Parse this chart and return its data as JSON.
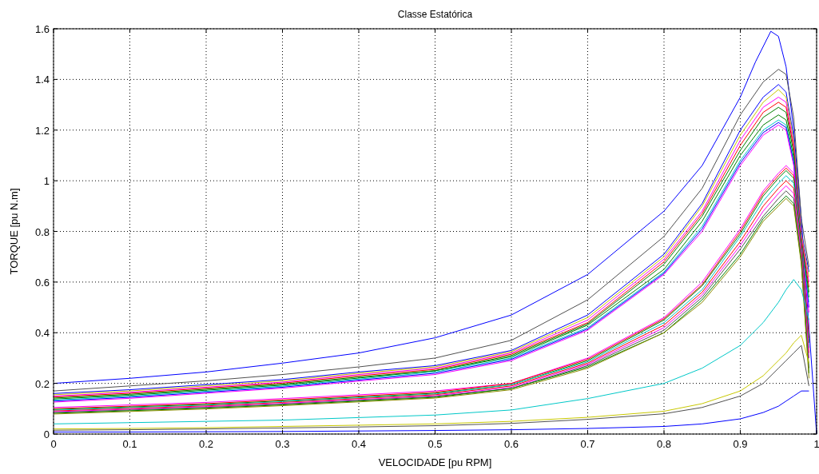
{
  "chart_data": {
    "type": "line",
    "title": "Classe Estatórica",
    "xlabel": "VELOCIDADE [pu RPM]",
    "ylabel": "TORQUE [pu N.m]",
    "x": [
      0,
      0.1,
      0.2,
      0.3,
      0.4,
      0.5,
      0.6,
      0.7,
      0.8,
      0.85,
      0.9,
      0.93,
      0.95,
      0.96,
      0.97,
      0.98,
      0.99
    ],
    "xlim": [
      0,
      1
    ],
    "xticks": [
      0,
      0.1,
      0.2,
      0.3,
      0.4,
      0.5,
      0.6,
      0.7,
      0.8,
      0.9,
      1
    ],
    "ylim": [
      0,
      1.6
    ],
    "yticks": [
      0,
      0.2,
      0.4,
      0.6,
      0.8,
      1,
      1.2,
      1.4,
      1.6
    ],
    "grid": true,
    "marker": "none",
    "line_style": "solid",
    "series": [
      {
        "color": "#0000ff",
        "x": [
          0,
          0.1,
          0.2,
          0.3,
          0.4,
          0.5,
          0.6,
          0.7,
          0.8,
          0.85,
          0.9,
          0.92,
          0.94,
          0.95,
          0.96,
          0.97,
          0.98,
          0.99,
          1
        ],
        "values": [
          0.2,
          0.22,
          0.245,
          0.28,
          0.32,
          0.38,
          0.47,
          0.63,
          0.88,
          1.06,
          1.33,
          1.47,
          1.59,
          1.57,
          1.45,
          1.2,
          0.85,
          0.42,
          0
        ]
      },
      {
        "color": "#505050",
        "values": [
          0.17,
          0.19,
          0.21,
          0.235,
          0.265,
          0.3,
          0.37,
          0.53,
          0.78,
          0.97,
          1.26,
          1.39,
          1.44,
          1.42,
          1.25,
          0.85,
          0.66
        ]
      },
      {
        "color": "#0000ff",
        "values": [
          0.16,
          0.175,
          0.195,
          0.215,
          0.245,
          0.27,
          0.33,
          0.47,
          0.71,
          0.91,
          1.2,
          1.33,
          1.38,
          1.35,
          1.17,
          0.8,
          0.64
        ]
      },
      {
        "color": "#c8c800",
        "values": [
          0.155,
          0.17,
          0.19,
          0.21,
          0.24,
          0.265,
          0.325,
          0.46,
          0.7,
          0.9,
          1.18,
          1.31,
          1.36,
          1.33,
          1.16,
          0.79,
          0.62
        ]
      },
      {
        "color": "#ff00ff",
        "values": [
          0.15,
          0.165,
          0.185,
          0.205,
          0.235,
          0.26,
          0.32,
          0.45,
          0.69,
          0.88,
          1.16,
          1.29,
          1.33,
          1.31,
          1.14,
          0.78,
          0.6
        ]
      },
      {
        "color": "#ff0000",
        "values": [
          0.146,
          0.161,
          0.181,
          0.201,
          0.23,
          0.255,
          0.315,
          0.44,
          0.68,
          0.87,
          1.14,
          1.27,
          1.31,
          1.29,
          1.13,
          0.77,
          0.58
        ]
      },
      {
        "color": "#008000",
        "values": [
          0.142,
          0.157,
          0.177,
          0.197,
          0.225,
          0.25,
          0.31,
          0.435,
          0.67,
          0.86,
          1.12,
          1.25,
          1.29,
          1.27,
          1.11,
          0.76,
          0.56
        ]
      },
      {
        "color": "#008000",
        "values": [
          0.138,
          0.153,
          0.173,
          0.193,
          0.221,
          0.25,
          0.305,
          0.43,
          0.65,
          0.84,
          1.1,
          1.22,
          1.26,
          1.24,
          1.09,
          0.75,
          0.54
        ]
      },
      {
        "color": "#00c8c8",
        "values": [
          0.134,
          0.149,
          0.169,
          0.189,
          0.217,
          0.245,
          0.3,
          0.42,
          0.64,
          0.82,
          1.08,
          1.2,
          1.24,
          1.22,
          1.08,
          0.75,
          0.52
        ]
      },
      {
        "color": "#0000ff",
        "values": [
          0.13,
          0.145,
          0.165,
          0.185,
          0.213,
          0.24,
          0.295,
          0.415,
          0.635,
          0.81,
          1.07,
          1.19,
          1.23,
          1.21,
          1.07,
          0.74,
          0.5
        ]
      },
      {
        "color": "#ff00ff",
        "values": [
          0.126,
          0.141,
          0.161,
          0.181,
          0.209,
          0.235,
          0.29,
          0.41,
          0.63,
          0.8,
          1.06,
          1.18,
          1.22,
          1.2,
          1.06,
          0.74,
          0.48
        ]
      },
      {
        "color": "#ff00ff",
        "values": [
          0.105,
          0.115,
          0.125,
          0.14,
          0.155,
          0.17,
          0.2,
          0.3,
          0.46,
          0.6,
          0.81,
          0.96,
          1.03,
          1.06,
          1.03,
          0.76,
          0.4
        ]
      },
      {
        "color": "#ff0000",
        "values": [
          0.1,
          0.11,
          0.12,
          0.135,
          0.15,
          0.165,
          0.2,
          0.295,
          0.455,
          0.59,
          0.8,
          0.95,
          1.02,
          1.05,
          1.02,
          0.75,
          0.38
        ]
      },
      {
        "color": "#008000",
        "values": [
          0.097,
          0.107,
          0.117,
          0.131,
          0.146,
          0.161,
          0.195,
          0.29,
          0.45,
          0.585,
          0.79,
          0.94,
          1.01,
          1.04,
          1.01,
          0.75,
          0.36
        ]
      },
      {
        "color": "#00c8c8",
        "values": [
          0.094,
          0.104,
          0.114,
          0.128,
          0.143,
          0.158,
          0.195,
          0.285,
          0.44,
          0.57,
          0.78,
          0.92,
          0.99,
          1.02,
          0.99,
          0.73,
          0.34
        ]
      },
      {
        "color": "#ff0000",
        "values": [
          0.091,
          0.101,
          0.111,
          0.125,
          0.14,
          0.155,
          0.19,
          0.28,
          0.43,
          0.56,
          0.76,
          0.9,
          0.97,
          1,
          0.97,
          0.72,
          0.32
        ]
      },
      {
        "color": "#ff00ff",
        "values": [
          0.088,
          0.098,
          0.108,
          0.121,
          0.136,
          0.151,
          0.185,
          0.275,
          0.42,
          0.55,
          0.745,
          0.88,
          0.95,
          0.98,
          0.95,
          0.71,
          0.3
        ]
      },
      {
        "color": "#505050",
        "values": [
          0.085,
          0.095,
          0.105,
          0.118,
          0.133,
          0.148,
          0.18,
          0.27,
          0.41,
          0.54,
          0.73,
          0.86,
          0.93,
          0.96,
          0.93,
          0.69,
          0.26
        ]
      },
      {
        "color": "#008000",
        "values": [
          0.082,
          0.092,
          0.102,
          0.115,
          0.13,
          0.145,
          0.18,
          0.265,
          0.4,
          0.53,
          0.71,
          0.85,
          0.91,
          0.94,
          0.91,
          0.68,
          0.24
        ]
      },
      {
        "color": "#8c8c00",
        "values": [
          0.079,
          0.089,
          0.099,
          0.112,
          0.127,
          0.142,
          0.175,
          0.26,
          0.4,
          0.52,
          0.7,
          0.84,
          0.9,
          0.93,
          0.9,
          0.67,
          0.22
        ]
      },
      {
        "color": "#00c8c8",
        "values": [
          0.04,
          0.045,
          0.05,
          0.055,
          0.065,
          0.075,
          0.095,
          0.14,
          0.2,
          0.26,
          0.35,
          0.44,
          0.52,
          0.57,
          0.61,
          0.57,
          0.45
        ]
      },
      {
        "color": "#c8c800",
        "values": [
          0.02,
          0.022,
          0.025,
          0.03,
          0.035,
          0.04,
          0.05,
          0.066,
          0.09,
          0.12,
          0.17,
          0.23,
          0.29,
          0.32,
          0.36,
          0.39,
          0.28
        ]
      },
      {
        "color": "#505050",
        "values": [
          0.015,
          0.017,
          0.02,
          0.024,
          0.028,
          0.033,
          0.042,
          0.058,
          0.08,
          0.105,
          0.15,
          0.2,
          0.26,
          0.29,
          0.32,
          0.35,
          0.19
        ]
      },
      {
        "color": "#0000ff",
        "values": [
          0.008,
          0.008,
          0.009,
          0.01,
          0.012,
          0.014,
          0.017,
          0.022,
          0.03,
          0.04,
          0.06,
          0.085,
          0.11,
          0.13,
          0.15,
          0.17,
          0.17
        ]
      }
    ]
  }
}
